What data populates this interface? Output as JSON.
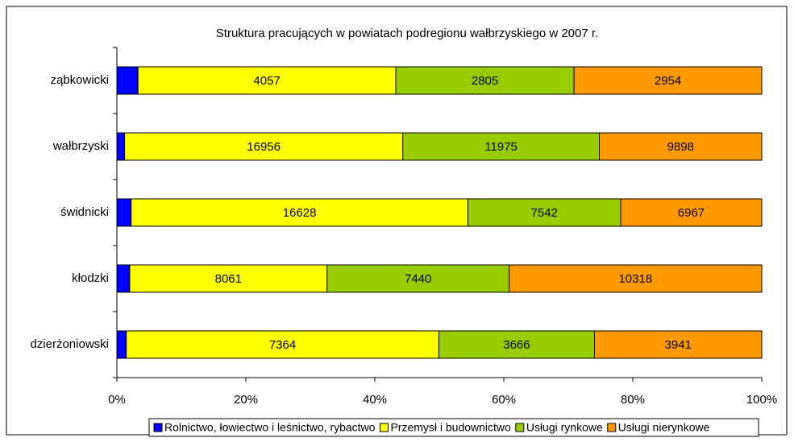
{
  "chart_data": {
    "type": "stacked_bar_100",
    "title": "Struktura pracujących w powiatach podregionu wałbrzyskiego w 2007 r.",
    "categories": [
      "ząbkowicki",
      "wałbrzyski",
      "świdnicki",
      "kłodzki",
      "dzierżoniowski"
    ],
    "series": [
      {
        "name": "Rolnictwo, łowiectwo i leśnictwo, rybactwo",
        "color": "#0000ff",
        "values": [
          332,
          469,
          704,
          524,
          221
        ]
      },
      {
        "name": "Przemysł i budownictwo",
        "color": "#ffff00",
        "values": [
          4057,
          16956,
          16628,
          8061,
          7364
        ]
      },
      {
        "name": "Usługi rynkowe",
        "color": "#99cc00",
        "values": [
          2805,
          11975,
          7542,
          7440,
          3666
        ]
      },
      {
        "name": "Usługi nierynkowe",
        "color": "#ff9900",
        "values": [
          2954,
          9898,
          6967,
          10318,
          3941
        ]
      }
    ],
    "xlim": [
      0,
      100
    ],
    "xticks": [
      {
        "value": 0,
        "label": "0%"
      },
      {
        "value": 20,
        "label": "20%"
      },
      {
        "value": 40,
        "label": "40%"
      },
      {
        "value": 60,
        "label": "60%"
      },
      {
        "value": 80,
        "label": "80%"
      },
      {
        "value": 100,
        "label": "100%"
      }
    ],
    "grid": false,
    "legend": "bottom"
  }
}
